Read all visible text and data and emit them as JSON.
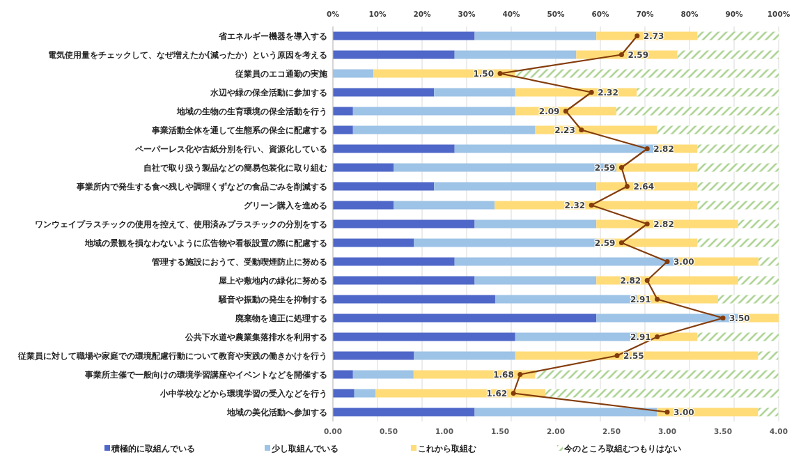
{
  "chart_data": {
    "type": "bar",
    "orientation": "horizontal",
    "stacked": true,
    "categories": [
      "省エネルギー機器を導入する",
      "電気使用量をチェックして、なぜ増えたか(減ったか）という原因を考える",
      "従業員のエコ通勤の実施",
      "水辺や緑の保全活動に参加する",
      "地域の生物の生育環境の保全活動を行う",
      "事業活動全体を通して生態系の保全に配慮する",
      "ペーパーレス化や古紙分別を行い、資源化している",
      "自社で取り扱う製品などの簡易包装化に取り組む",
      "事業所内で発生する食べ残しや調理くずなどの食品ごみを削減する",
      "グリーン購入を進める",
      "ワンウェイプラスチックの使用を控えて、使用済みプラスチックの分別をする",
      "地域の景観を損なわないように広告物や看板設置の際に配慮する",
      "管理する施設におうて、受動喫煙防止に努める",
      "屋上や敷地内の緑化に努める",
      "騒音や振動の発生を抑制する",
      "廃棄物を適正に処理する",
      "公共下水道や農業集落排水を利用する",
      "従業員に対して職場や家庭での環境配慮行動について教育や実践の働きかけを行う",
      "事業所主催で一般向けの環境学習講座やイベントなどを開催する",
      "小中学校などから環境学習の受入などを行う",
      "地域の美化活動へ参加する"
    ],
    "series": [
      {
        "name": "積極的に取組んでいる",
        "color": "#4e67c8",
        "values": [
          31.8,
          27.3,
          0,
          22.7,
          4.5,
          4.5,
          27.3,
          13.6,
          22.7,
          13.6,
          31.8,
          18.2,
          27.3,
          31.8,
          36.4,
          59.1,
          40.9,
          18.2,
          4.5,
          4.8,
          31.8
        ]
      },
      {
        "name": "少し取組んでいる",
        "color": "#9dc3e6",
        "values": [
          27.3,
          27.3,
          9.1,
          18.2,
          36.4,
          40.9,
          45.4,
          50.0,
          36.4,
          22.7,
          27.3,
          40.9,
          50.0,
          27.3,
          31.8,
          31.8,
          27.3,
          22.7,
          13.6,
          4.8,
          40.9
        ]
      },
      {
        "name": "これから取組む",
        "color": "#ffdc78",
        "values": [
          22.7,
          22.7,
          31.8,
          27.3,
          22.7,
          27.3,
          9.1,
          18.2,
          22.7,
          45.5,
          31.8,
          22.7,
          18.2,
          31.8,
          18.2,
          9.1,
          13.6,
          54.5,
          27.3,
          38.1,
          22.7
        ]
      },
      {
        "name": "今のところ取組むつもりはない",
        "color": "#a9d18e",
        "values": [
          18.2,
          22.7,
          59.1,
          31.8,
          36.4,
          27.3,
          18.2,
          18.2,
          18.2,
          18.2,
          9.1,
          18.2,
          4.5,
          9.1,
          13.6,
          0,
          18.2,
          4.5,
          54.5,
          52.3,
          4.5
        ]
      },
      {
        "type": "line",
        "color": "#843c0c",
        "axis": "x2",
        "marker": "circle",
        "values": [
          2.73,
          2.59,
          1.5,
          2.32,
          2.09,
          2.23,
          2.82,
          2.59,
          2.64,
          2.32,
          2.82,
          2.59,
          3.0,
          2.82,
          2.91,
          3.5,
          2.91,
          2.55,
          1.68,
          1.62,
          3.0
        ],
        "value_labels": [
          "2.73",
          "2.59",
          "1.50",
          "2.32",
          "2.09",
          "2.23",
          "2.82",
          "2.59",
          "2.64",
          "2.32",
          "2.82",
          "2.59",
          "3.00",
          "2.82",
          "2.91",
          "3.50",
          "2.91",
          "2.55",
          "1.68",
          "1.62",
          "3.00"
        ]
      }
    ],
    "xlim": [
      0,
      100
    ],
    "xticks": [
      {
        "value": 0,
        "label": "0%"
      },
      {
        "value": 10,
        "label": "10%"
      },
      {
        "value": 20,
        "label": "20%"
      },
      {
        "value": 30,
        "label": "30%"
      },
      {
        "value": 40,
        "label": "40%"
      },
      {
        "value": 50,
        "label": "50%"
      },
      {
        "value": 60,
        "label": "60%"
      },
      {
        "value": 70,
        "label": "70%"
      },
      {
        "value": 80,
        "label": "80%"
      },
      {
        "value": 90,
        "label": "90%"
      },
      {
        "value": 100,
        "label": "100%"
      }
    ],
    "x2lim": [
      0,
      4
    ],
    "x2ticks": [
      {
        "value": 0,
        "label": "0.00"
      },
      {
        "value": 0.5,
        "label": "0.50"
      },
      {
        "value": 1,
        "label": "1.00"
      },
      {
        "value": 1.5,
        "label": "1.50"
      },
      {
        "value": 2,
        "label": "2.00"
      },
      {
        "value": 2.5,
        "label": "2.50"
      },
      {
        "value": 3,
        "label": "3.00"
      },
      {
        "value": 3.5,
        "label": "3.50"
      },
      {
        "value": 4,
        "label": "4.00"
      }
    ],
    "grid": "x",
    "legend": "bottom"
  }
}
